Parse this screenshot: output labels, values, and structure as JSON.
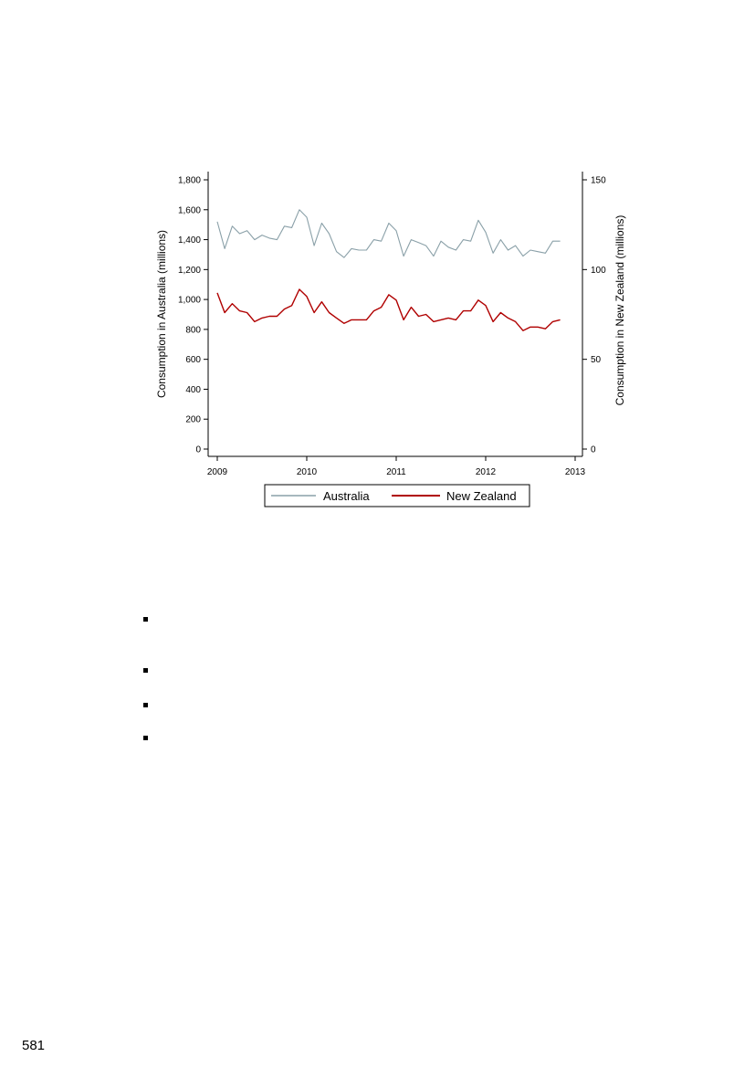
{
  "chart_data": {
    "type": "line",
    "x_range": [
      2009,
      2013
    ],
    "x_ticks": [
      "2009",
      "2010",
      "2011",
      "2012",
      "2013"
    ],
    "y_left": {
      "label": "Consumption in Australia (millions)",
      "range": [
        0,
        1800
      ],
      "ticks": [
        "0",
        "200",
        "400",
        "600",
        "800",
        "1,000",
        "1,200",
        "1,400",
        "1,600",
        "1,800"
      ]
    },
    "y_right": {
      "label": "Consumption in New Zealand (millions)",
      "range": [
        0,
        150
      ],
      "ticks": [
        "0",
        "50",
        "100",
        "150"
      ]
    },
    "grid": false,
    "legend_position": "bottom",
    "series": [
      {
        "name": "Australia",
        "axis": "left",
        "color": "#8aa0a8",
        "x": [
          2009.0,
          2009.083,
          2009.167,
          2009.25,
          2009.333,
          2009.417,
          2009.5,
          2009.583,
          2009.667,
          2009.75,
          2009.833,
          2009.917,
          2010.0,
          2010.083,
          2010.167,
          2010.25,
          2010.333,
          2010.417,
          2010.5,
          2010.583,
          2010.667,
          2010.75,
          2010.833,
          2010.917,
          2011.0,
          2011.083,
          2011.167,
          2011.25,
          2011.333,
          2011.417,
          2011.5,
          2011.583,
          2011.667,
          2011.75,
          2011.833,
          2011.917,
          2012.0,
          2012.083,
          2012.167,
          2012.25,
          2012.333,
          2012.417,
          2012.5,
          2012.583,
          2012.667,
          2012.75,
          2012.833
        ],
        "values": [
          1520,
          1340,
          1490,
          1440,
          1460,
          1400,
          1430,
          1410,
          1400,
          1490,
          1480,
          1600,
          1550,
          1360,
          1510,
          1440,
          1320,
          1280,
          1340,
          1330,
          1330,
          1400,
          1390,
          1510,
          1460,
          1290,
          1400,
          1380,
          1360,
          1290,
          1390,
          1350,
          1330,
          1400,
          1390,
          1530,
          1450,
          1310,
          1400,
          1330,
          1360,
          1290,
          1330,
          1320,
          1310,
          1390,
          1390
        ]
      },
      {
        "name": "New Zealand",
        "axis": "right",
        "color": "#b00000",
        "x": [
          2009.0,
          2009.083,
          2009.167,
          2009.25,
          2009.333,
          2009.417,
          2009.5,
          2009.583,
          2009.667,
          2009.75,
          2009.833,
          2009.917,
          2010.0,
          2010.083,
          2010.167,
          2010.25,
          2010.333,
          2010.417,
          2010.5,
          2010.583,
          2010.667,
          2010.75,
          2010.833,
          2010.917,
          2011.0,
          2011.083,
          2011.167,
          2011.25,
          2011.333,
          2011.417,
          2011.5,
          2011.583,
          2011.667,
          2011.75,
          2011.833,
          2011.917,
          2012.0,
          2012.083,
          2012.167,
          2012.25,
          2012.333,
          2012.417,
          2012.5,
          2012.583,
          2012.667,
          2012.75,
          2012.833
        ],
        "values": [
          87,
          76,
          81,
          77,
          76,
          71,
          73,
          74,
          74,
          78,
          80,
          89,
          85,
          76,
          82,
          76,
          73,
          70,
          72,
          72,
          72,
          77,
          79,
          86,
          83,
          72,
          79,
          74,
          75,
          71,
          72,
          73,
          72,
          77,
          77,
          83,
          80,
          71,
          76,
          73,
          71,
          66,
          68,
          68,
          67,
          71,
          72
        ]
      }
    ]
  },
  "page_number": "581"
}
